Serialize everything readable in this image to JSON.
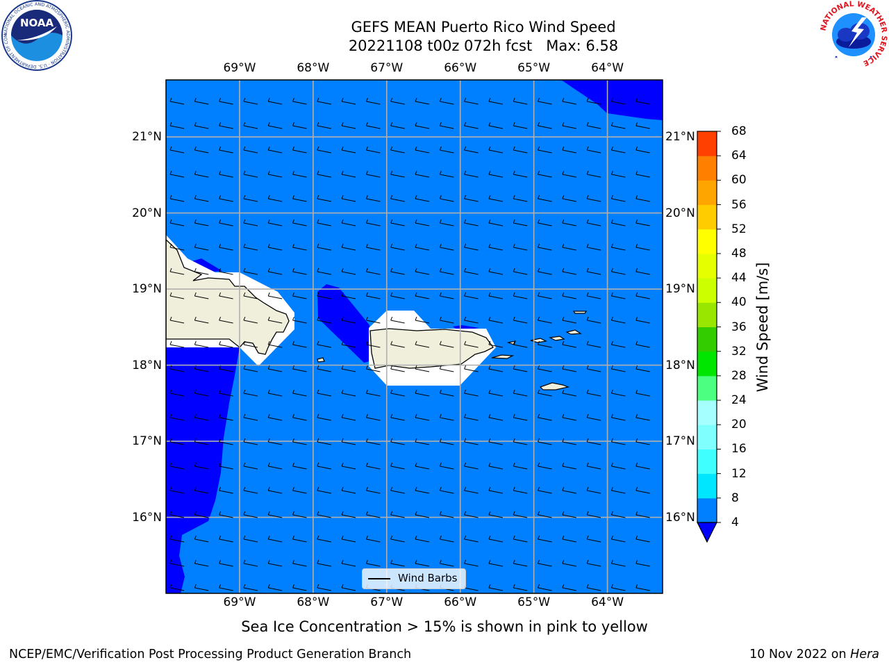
{
  "title": {
    "line1": "GEFS MEAN Puerto Rico Wind Speed",
    "line2": "20221108 t00z 072h fcst   Max: 6.58"
  },
  "map": {
    "lon_range": [
      -70.0,
      -63.25
    ],
    "lat_range": [
      15.0,
      21.75
    ],
    "lon_ticks": [
      "69°W",
      "68°W",
      "67°W",
      "66°W",
      "65°W",
      "64°W"
    ],
    "lon_tick_values": [
      -69,
      -68,
      -67,
      -66,
      -65,
      -64
    ],
    "lat_ticks": [
      "21°N",
      "20°N",
      "19°N",
      "18°N",
      "17°N",
      "16°N"
    ],
    "lat_tick_values": [
      21,
      20,
      19,
      18,
      17,
      16
    ],
    "gridlines": true,
    "ocean_color": "#0080ff",
    "low_wind_color": "#0000ff",
    "land_color": "#efefdc",
    "landmasses": [
      "Hispaniola",
      "Puerto Rico",
      "Virgin Islands"
    ],
    "legend": {
      "label": "Wind Barbs",
      "placement": "bottom-center"
    },
    "wind_direction": "from east-southeast"
  },
  "colorbar": {
    "label": "Wind Speed [m/s]",
    "ticks": [
      "4",
      "8",
      "12",
      "16",
      "20",
      "24",
      "28",
      "32",
      "36",
      "40",
      "44",
      "48",
      "52",
      "56",
      "60",
      "64",
      "68"
    ],
    "colors": [
      "#0080ff",
      "#00e6ff",
      "#40ffff",
      "#80ffff",
      "#a6ffff",
      "#4dff80",
      "#00e600",
      "#33cc00",
      "#99e600",
      "#ccff00",
      "#e6ff00",
      "#ffff00",
      "#ffcc00",
      "#ffa500",
      "#ff8000",
      "#ff4000",
      "#ff1a00",
      "#ff0000"
    ],
    "under_color": "#0000ff",
    "extend": "min"
  },
  "caption": "Sea Ice Concentration > 15% is shown in pink to yellow",
  "footer": {
    "left": "NCEP/EMC/Verification Post Processing Product Generation Branch",
    "right_date": "10 Nov 2022 on ",
    "right_machine": "Hera"
  },
  "logos": {
    "left": {
      "name": "NOAA",
      "ring_text": "NATIONAL OCEANIC AND ATMOSPHERIC ADMINISTRATION · U.S. DEPARTMENT OF COMMERCE"
    },
    "right": {
      "name": "NATIONAL WEATHER SERVICE"
    }
  }
}
